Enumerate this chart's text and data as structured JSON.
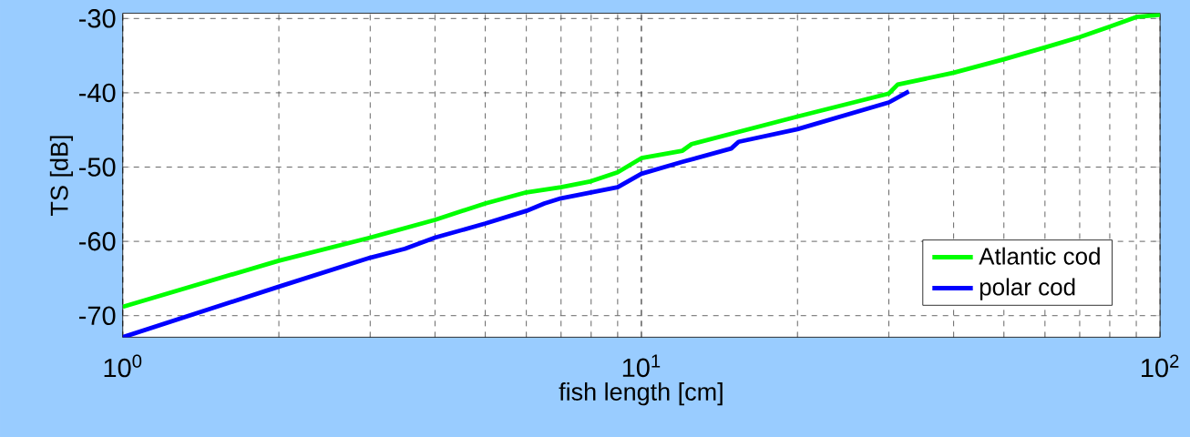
{
  "chart_data": {
    "type": "line",
    "xlabel": "fish length [cm]",
    "ylabel": "TS [dB]",
    "log": "x",
    "grid": true,
    "legend": "bottom right",
    "line_style": "solid",
    "marker": "none",
    "xlim": [
      1,
      100
    ],
    "ylim": [
      -72.9,
      -29.3
    ],
    "xticks": [
      {
        "value": 1,
        "label": "10$^{0}$"
      },
      {
        "value": 10,
        "label": "10$^{1}$"
      },
      {
        "value": 100,
        "label": "10$^{2}$"
      }
    ],
    "yticks": [
      -70,
      -60,
      -50,
      -40,
      -30
    ],
    "series": [
      {
        "name": "Atlantic cod",
        "color": "#00ff00",
        "x": [
          1,
          2,
          3,
          4,
          5,
          6,
          7,
          8,
          9,
          10,
          12,
          12.5,
          20,
          30,
          31.2,
          40,
          50,
          60,
          70,
          80,
          90,
          100
        ],
        "values": [
          -68.8,
          -62.6,
          -59.5,
          -57.1,
          -54.9,
          -53.4,
          -52.7,
          -51.9,
          -50.7,
          -48.8,
          -47.8,
          -46.9,
          -43.2,
          -40.1,
          -38.9,
          -37.3,
          -35.5,
          -33.9,
          -32.5,
          -31.1,
          -29.8,
          -29.5
        ]
      },
      {
        "name": "polar cod",
        "color": "#0000ff",
        "x": [
          1,
          2,
          3,
          3.5,
          4,
          5,
          6,
          6.5,
          7,
          9,
          10,
          12,
          14.9,
          15.4,
          20,
          30,
          32.8
        ],
        "values": [
          -72.9,
          -66.1,
          -62.2,
          -61.0,
          -59.5,
          -57.6,
          -55.9,
          -54.9,
          -54.2,
          -52.7,
          -50.9,
          -49.3,
          -47.5,
          -46.6,
          -44.9,
          -41.3,
          -39.8
        ]
      }
    ]
  }
}
